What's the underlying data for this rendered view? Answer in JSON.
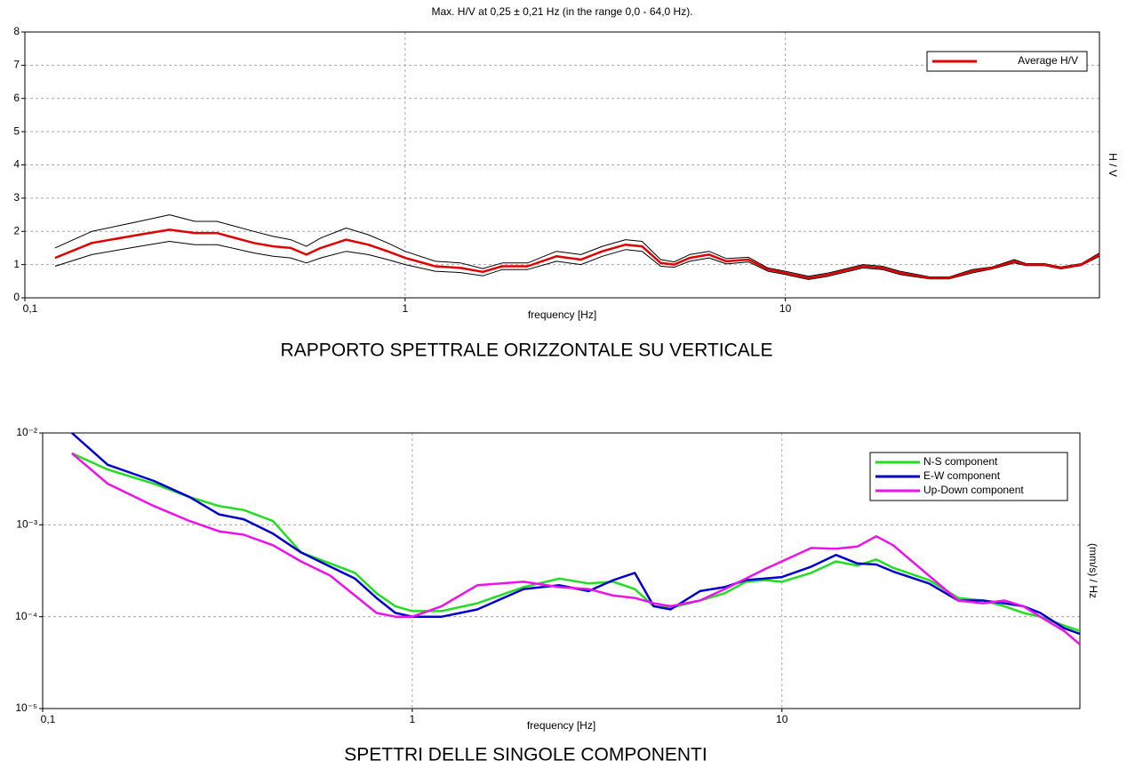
{
  "chart_data": [
    {
      "type": "line",
      "title": "Max. H/V at 0,25 ± 0,21 Hz (in the range 0,0 - 64,0 Hz).",
      "x_label": "frequency [Hz]",
      "y_label": "H / V",
      "caption": "RAPPORTO SPETTRALE ORIZZONTALE SU VERTICALE",
      "xscale": "log",
      "yscale": "linear",
      "xlim": [
        0.1,
        67
      ],
      "ylim": [
        0,
        8
      ],
      "xticks": [
        {
          "value": 0.1,
          "label": "0,1"
        },
        1,
        10
      ],
      "yticks": [
        0,
        1,
        2,
        3,
        4,
        5,
        6,
        7,
        8
      ],
      "grid": true,
      "legend": "upper right",
      "x": [
        0.12,
        0.15,
        0.2,
        0.24,
        0.28,
        0.32,
        0.4,
        0.45,
        0.5,
        0.55,
        0.6,
        0.7,
        0.8,
        0.9,
        1,
        1.2,
        1.4,
        1.6,
        1.8,
        2.1,
        2.5,
        2.9,
        3.3,
        3.8,
        4.2,
        4.7,
        5.1,
        5.6,
        6.3,
        7,
        8,
        9,
        10,
        11.5,
        13,
        16,
        18,
        20,
        24,
        27,
        31,
        35,
        40,
        43,
        48,
        53,
        60,
        67
      ],
      "series": [
        {
          "name": "Average H/V",
          "color": "#e00000",
          "values": [
            1.2,
            1.65,
            1.9,
            2.05,
            1.95,
            1.95,
            1.65,
            1.55,
            1.5,
            1.3,
            1.5,
            1.75,
            1.6,
            1.4,
            1.2,
            0.95,
            0.9,
            0.78,
            0.95,
            0.95,
            1.25,
            1.15,
            1.4,
            1.6,
            1.55,
            1.05,
            1.0,
            1.2,
            1.3,
            1.1,
            1.15,
            0.85,
            0.75,
            0.6,
            0.7,
            0.95,
            0.9,
            0.75,
            0.6,
            0.6,
            0.8,
            0.9,
            1.1,
            1.0,
            1.0,
            0.9,
            1.0,
            1.3
          ]
        },
        {
          "color": "#000000",
          "values": [
            1.5,
            2.0,
            2.3,
            2.5,
            2.3,
            2.3,
            2.0,
            1.85,
            1.75,
            1.55,
            1.8,
            2.1,
            1.9,
            1.65,
            1.4,
            1.1,
            1.05,
            0.88,
            1.05,
            1.05,
            1.4,
            1.3,
            1.55,
            1.75,
            1.7,
            1.15,
            1.08,
            1.3,
            1.4,
            1.18,
            1.22,
            0.9,
            0.8,
            0.65,
            0.75,
            1.0,
            0.95,
            0.8,
            0.63,
            0.63,
            0.85,
            0.93,
            1.15,
            1.03,
            1.03,
            0.93,
            1.03,
            1.35
          ]
        },
        {
          "color": "#000000",
          "values": [
            0.95,
            1.3,
            1.55,
            1.7,
            1.6,
            1.6,
            1.35,
            1.25,
            1.2,
            1.05,
            1.2,
            1.4,
            1.3,
            1.15,
            1.0,
            0.8,
            0.76,
            0.66,
            0.85,
            0.85,
            1.1,
            1.0,
            1.25,
            1.45,
            1.4,
            0.95,
            0.92,
            1.1,
            1.2,
            1.02,
            1.08,
            0.8,
            0.7,
            0.55,
            0.65,
            0.9,
            0.85,
            0.7,
            0.57,
            0.57,
            0.75,
            0.87,
            1.05,
            0.97,
            0.97,
            0.87,
            0.97,
            1.25
          ]
        }
      ]
    },
    {
      "type": "line",
      "x_label": "frequency [Hz]",
      "y_label": "(mm/s) / Hz",
      "caption": "SPETTRI DELLE SINGOLE COMPONENTI",
      "xscale": "log",
      "yscale": "log",
      "xlim": [
        0.1,
        64
      ],
      "ylim": [
        1e-05,
        0.01
      ],
      "xticks": [
        {
          "value": 0.1,
          "label": "0,1"
        },
        1,
        10
      ],
      "yticks": [
        {
          "value": 1e-05,
          "label": "10⁻⁵"
        },
        {
          "value": 0.0001,
          "label": "10⁻⁴"
        },
        {
          "value": 0.001,
          "label": "10⁻³"
        },
        {
          "value": 0.01,
          "label": "10⁻²"
        }
      ],
      "grid": true,
      "legend": "upper right",
      "x": [
        0.12,
        0.15,
        0.2,
        0.25,
        0.3,
        0.35,
        0.42,
        0.5,
        0.6,
        0.7,
        0.8,
        0.9,
        1,
        1.2,
        1.5,
        2,
        2.5,
        3,
        3.5,
        4,
        4.5,
        5,
        6,
        7,
        8,
        9,
        10,
        12,
        14,
        16,
        18,
        20,
        25,
        30,
        35,
        40,
        45,
        50,
        58,
        64
      ],
      "series": [
        {
          "name": "N-S component",
          "color": "#22dd22",
          "values": [
            0.006,
            0.004,
            0.0028,
            0.002,
            0.0016,
            0.00145,
            0.0011,
            0.0005,
            0.00038,
            0.0003,
            0.00018,
            0.00013,
            0.000115,
            0.000115,
            0.00014,
            0.00021,
            0.00026,
            0.00023,
            0.00024,
            0.0002,
            0.00013,
            0.000125,
            0.00015,
            0.00018,
            0.00024,
            0.00025,
            0.00024,
            0.0003,
            0.0004,
            0.00036,
            0.00042,
            0.00034,
            0.00025,
            0.00016,
            0.00015,
            0.00013,
            0.00011,
            0.0001,
            8e-05,
            7e-05
          ]
        },
        {
          "name": "E-W component",
          "color": "#0000cc",
          "values": [
            0.01,
            0.0045,
            0.003,
            0.002,
            0.0013,
            0.00115,
            0.0008,
            0.0005,
            0.00035,
            0.00026,
            0.00016,
            0.00011,
            0.0001,
            0.0001,
            0.00012,
            0.0002,
            0.00022,
            0.00019,
            0.00025,
            0.0003,
            0.00013,
            0.00012,
            0.00019,
            0.00021,
            0.00025,
            0.00026,
            0.00027,
            0.00035,
            0.00047,
            0.00038,
            0.00037,
            0.00031,
            0.00023,
            0.00015,
            0.00015,
            0.00014,
            0.00013,
            0.00011,
            7.5e-05,
            6.5e-05
          ]
        },
        {
          "name": "Up-Down component",
          "color": "#ee11ee",
          "values": [
            0.006,
            0.0028,
            0.0016,
            0.0011,
            0.00085,
            0.00078,
            0.0006,
            0.0004,
            0.00028,
            0.00017,
            0.00011,
            0.0001,
            0.0001,
            0.00013,
            0.00022,
            0.00024,
            0.00021,
            0.0002,
            0.00017,
            0.00016,
            0.00014,
            0.00013,
            0.00015,
            0.0002,
            0.00026,
            0.00033,
            0.0004,
            0.00056,
            0.00055,
            0.00058,
            0.00075,
            0.0006,
            0.00028,
            0.00015,
            0.00014,
            0.00015,
            0.00013,
            0.0001,
            7e-05,
            5e-05
          ]
        }
      ]
    }
  ]
}
